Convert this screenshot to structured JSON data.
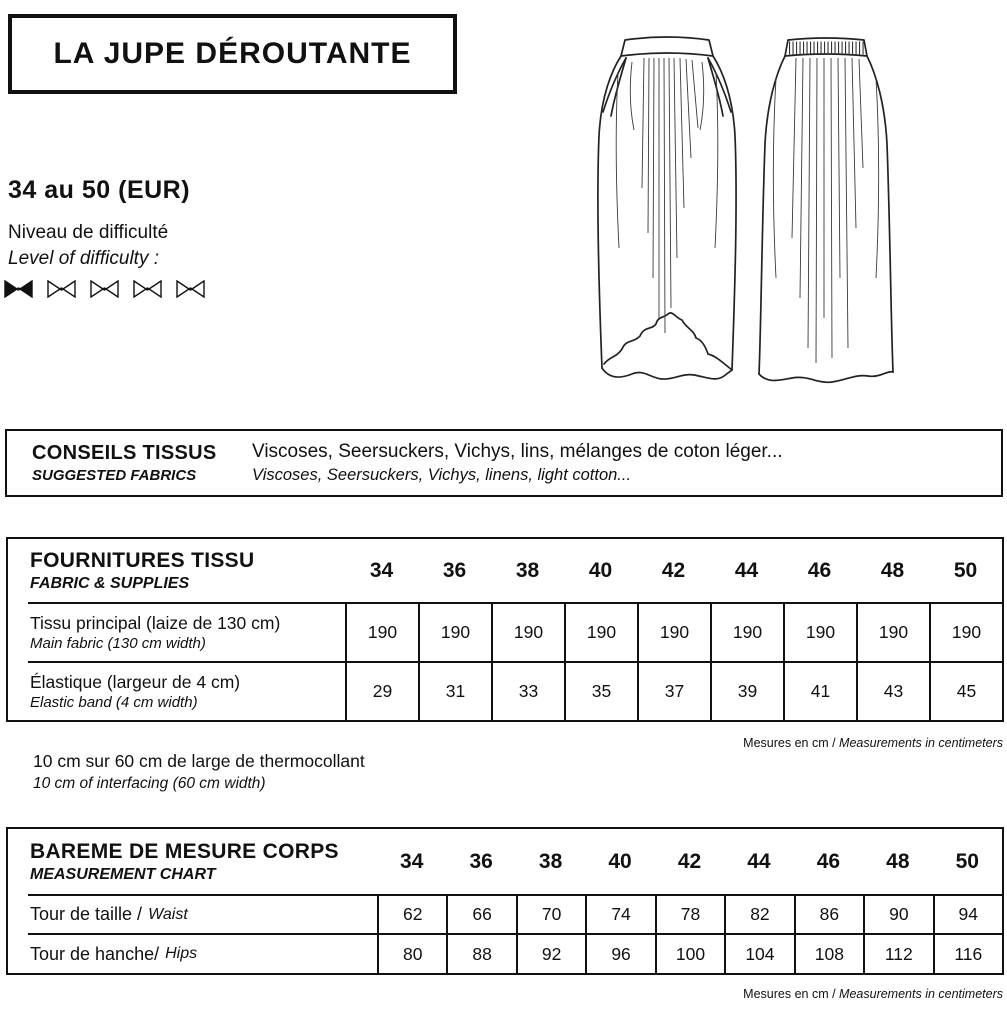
{
  "title": "LA JUPE DÉROUTANTE",
  "size_range": "34 au 50 (EUR)",
  "difficulty": {
    "label_fr": "Niveau de difficulté",
    "label_en": "Level of difficulty :",
    "level": 1,
    "max": 5,
    "icon": "bow-tie-icon"
  },
  "fabrics": {
    "heading_fr": "CONSEILS TISSUS",
    "heading_en": "SUGGESTED FABRICS",
    "text_fr": "Viscoses, Seersuckers, Vichys, lins, mélanges de coton léger...",
    "text_en": "Viscoses, Seersuckers, Vichys, linens, light cotton..."
  },
  "sizes": [
    "34",
    "36",
    "38",
    "40",
    "42",
    "44",
    "46",
    "48",
    "50"
  ],
  "supplies_table": {
    "heading_fr": "FOURNITURES TISSU",
    "heading_en": "FABRIC & SUPPLIES",
    "rows": [
      {
        "label_fr": "Tissu principal (laize de 130 cm)",
        "label_en": "Main fabric (130 cm width)",
        "values": [
          "190",
          "190",
          "190",
          "190",
          "190",
          "190",
          "190",
          "190",
          "190"
        ]
      },
      {
        "label_fr": "Élastique (largeur de 4 cm)",
        "label_en": "Elastic band (4 cm width)",
        "values": [
          "29",
          "31",
          "33",
          "35",
          "37",
          "39",
          "41",
          "43",
          "45"
        ]
      }
    ]
  },
  "interfacing_note": {
    "text_fr": "10 cm sur 60 cm de large de thermocollant",
    "text_en": "10 cm of interfacing (60 cm width)"
  },
  "measurement_table": {
    "heading_fr": "BAREME DE MESURE CORPS",
    "heading_en": "MEASUREMENT CHART",
    "rows": [
      {
        "label_fr": "Tour de taille /",
        "label_en": "Waist",
        "values": [
          "62",
          "66",
          "70",
          "74",
          "78",
          "82",
          "86",
          "90",
          "94"
        ]
      },
      {
        "label_fr": "Tour de hanche/",
        "label_en": "Hips",
        "values": [
          "80",
          "88",
          "92",
          "96",
          "100",
          "104",
          "108",
          "112",
          "116"
        ]
      }
    ]
  },
  "units_note": {
    "fr": "Mesures en cm /",
    "en": "Measurements in centimeters"
  },
  "colors": {
    "ink": "#111111",
    "background": "#ffffff"
  },
  "drawings": {
    "front": "skirt-front-technical-drawing",
    "back": "skirt-back-technical-drawing"
  }
}
